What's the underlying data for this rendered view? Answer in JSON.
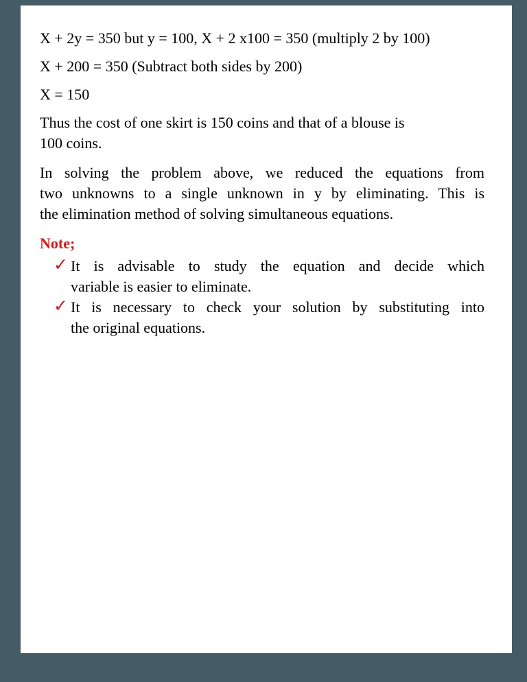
{
  "colors": {
    "frame": "#455c66",
    "paper": "#ffffff",
    "text": "#000000",
    "accent_red": "#e21414"
  },
  "content": {
    "equations": [
      "X + 2y = 350 but y = 100, X + 2 x100 = 350 (multiply 2 by 100)",
      "X + 200 = 350 (Subtract both sides by 200)",
      "X = 150"
    ],
    "paragraph_thus": {
      "lines": [
        "Thus the cost of one skirt is 150 coins and that of a blouse is",
        "100 coins."
      ]
    },
    "paragraph_elimination": {
      "lines": [
        "In solving the problem above, we reduced the equations from",
        "two unknowns to a single unknown in y by eliminating. This is",
        "the elimination method of solving simultaneous equations."
      ]
    },
    "note": {
      "label": "Note;",
      "items": [
        {
          "marker": "✓",
          "lines": [
            "It is advisable to study the equation and decide which",
            "variable is easier to eliminate."
          ]
        },
        {
          "marker": "✓",
          "lines": [
            "It is necessary to check your solution by substituting into",
            "the original equations."
          ]
        }
      ]
    }
  }
}
